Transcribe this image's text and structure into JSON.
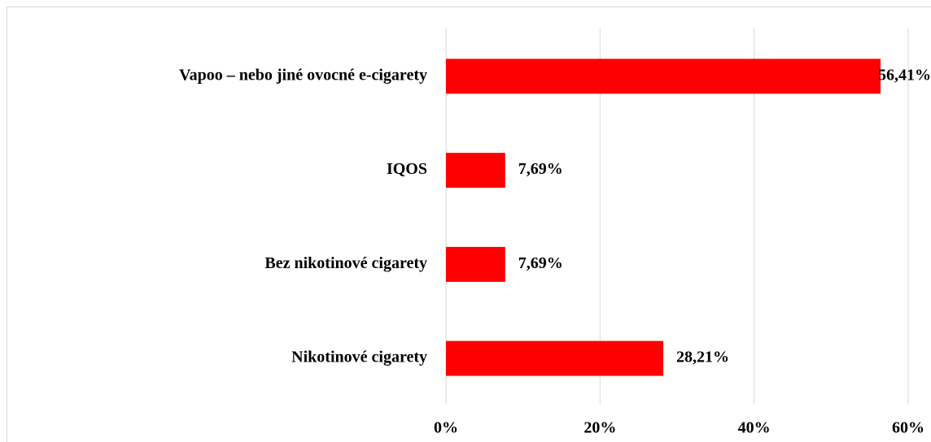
{
  "chart_data": {
    "type": "bar",
    "orientation": "horizontal",
    "categories": [
      "Vapoo – nebo jiné ovocné e-cigarety",
      "IQOS",
      "Bez nikotinové cigarety",
      "Nikotinové cigarety"
    ],
    "values": [
      56.41,
      7.69,
      7.69,
      28.21
    ],
    "value_labels": [
      "56,41%",
      "7,69%",
      "7,69%",
      "28,21%"
    ],
    "color": "#ff0000",
    "xlim": [
      0,
      60
    ],
    "xticks": [
      {
        "value": 0,
        "label": "0%"
      },
      {
        "value": 20,
        "label": "20%"
      },
      {
        "value": 40,
        "label": "40%"
      },
      {
        "value": 60,
        "label": "60%"
      }
    ],
    "grid": true
  }
}
